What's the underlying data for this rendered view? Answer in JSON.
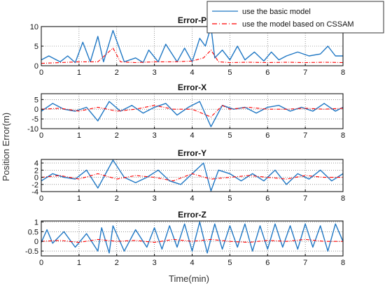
{
  "figure": {
    "xlabel": "Time(min)",
    "ylabel": "Position Error(m)",
    "legend": {
      "placement": "top-right",
      "entries": [
        {
          "label": "use the basic model",
          "color": "#1f77c4",
          "style": "solid"
        },
        {
          "label": "use the model based on CSSAM",
          "color": "#ff0000",
          "style": "dash-dot"
        }
      ]
    }
  },
  "chart_data": [
    {
      "type": "line",
      "title": "Error-P",
      "xlim": [
        0,
        8
      ],
      "ylim": [
        0,
        10
      ],
      "yticks": [
        "0",
        "5",
        "10"
      ],
      "xticks": [
        "0",
        "1",
        "2",
        "3",
        "4",
        "5",
        "6",
        "7",
        "8"
      ],
      "grid": true,
      "series": [
        {
          "name": "use the basic model",
          "x": [
            0,
            0.2,
            0.5,
            0.7,
            0.9,
            1.1,
            1.3,
            1.5,
            1.65,
            1.9,
            2.2,
            2.5,
            2.7,
            2.85,
            3.1,
            3.3,
            3.6,
            3.8,
            4.0,
            4.2,
            4.35,
            4.5,
            4.6,
            4.8,
            5.0,
            5.2,
            5.4,
            5.65,
            5.9,
            6.1,
            6.3,
            6.5,
            6.8,
            7.1,
            7.4,
            7.6,
            7.8,
            8.0
          ],
          "y": [
            1.5,
            2.5,
            1.0,
            2.5,
            0.8,
            6.0,
            1.0,
            7.5,
            1.0,
            9.0,
            1.0,
            2.0,
            0.8,
            4.0,
            1.0,
            5.5,
            1.0,
            4.5,
            1.0,
            7.0,
            5.0,
            10.0,
            2.0,
            4.0,
            1.5,
            5.0,
            1.5,
            3.5,
            1.2,
            3.5,
            1.5,
            2.5,
            3.5,
            2.5,
            3.0,
            5.0,
            2.5,
            2.5
          ]
        },
        {
          "name": "use the model based on CSSAM",
          "x": [
            0,
            0.5,
            1.0,
            1.5,
            1.9,
            2.1,
            2.5,
            3.0,
            3.5,
            4.0,
            4.3,
            4.5,
            4.7,
            5.0,
            5.5,
            6.0,
            6.5,
            7.0,
            7.5,
            8.0
          ],
          "y": [
            0.6,
            0.8,
            1.0,
            1.0,
            4.5,
            1.0,
            0.8,
            1.0,
            1.0,
            1.2,
            2.0,
            4.0,
            1.0,
            0.8,
            0.9,
            0.8,
            0.9,
            0.8,
            0.9,
            0.8
          ]
        }
      ]
    },
    {
      "type": "line",
      "title": "Error-X",
      "xlim": [
        0,
        8
      ],
      "ylim": [
        -10,
        8
      ],
      "yticks": [
        "-10",
        "-5",
        "0",
        "5"
      ],
      "xticks": [
        "0",
        "1",
        "2",
        "3",
        "4",
        "5",
        "6",
        "7",
        "8"
      ],
      "grid": true,
      "series": [
        {
          "name": "use the basic model",
          "x": [
            0,
            0.3,
            0.6,
            0.9,
            1.2,
            1.5,
            1.8,
            2.1,
            2.4,
            2.7,
            3.0,
            3.3,
            3.6,
            3.9,
            4.2,
            4.5,
            4.8,
            5.1,
            5.4,
            5.7,
            6.0,
            6.3,
            6.6,
            6.9,
            7.2,
            7.5,
            7.8,
            8.0
          ],
          "y": [
            -1,
            3,
            0,
            -1,
            1,
            -6,
            4,
            -1,
            2,
            -2,
            1,
            3,
            -3,
            1,
            4,
            -9,
            2,
            0,
            1,
            -2,
            1,
            2,
            -1,
            1,
            -1,
            3,
            -1,
            1
          ]
        },
        {
          "name": "use the model based on CSSAM",
          "x": [
            0,
            0.5,
            1.0,
            1.5,
            2.0,
            2.5,
            3.0,
            3.5,
            4.0,
            4.5,
            4.8,
            5.0,
            5.5,
            6.0,
            6.5,
            7.0,
            7.5,
            8.0
          ],
          "y": [
            0,
            0.5,
            -1,
            1,
            -1,
            0,
            2,
            0,
            0,
            -4,
            2,
            0,
            1,
            0,
            0,
            0.5,
            0,
            0.5
          ]
        }
      ]
    },
    {
      "type": "line",
      "title": "Error-Y",
      "xlim": [
        0,
        8
      ],
      "ylim": [
        -4,
        5
      ],
      "yticks": [
        "-4",
        "-2",
        "0",
        "2",
        "4"
      ],
      "xticks": [
        "0",
        "1",
        "2",
        "3",
        "4",
        "5",
        "6",
        "7",
        "8"
      ],
      "grid": true,
      "series": [
        {
          "name": "use the basic model",
          "x": [
            0,
            0.3,
            0.6,
            0.9,
            1.2,
            1.5,
            1.9,
            2.2,
            2.5,
            2.8,
            3.1,
            3.4,
            3.7,
            4.0,
            4.3,
            4.5,
            4.7,
            5.0,
            5.3,
            5.6,
            5.9,
            6.2,
            6.5,
            6.8,
            7.1,
            7.4,
            7.7,
            8.0
          ],
          "y": [
            -1,
            1,
            0,
            -0.5,
            2,
            -3,
            4.8,
            0,
            -1.5,
            0,
            2,
            -1,
            -2,
            1,
            4,
            -3.8,
            2,
            1,
            -1,
            1,
            -1,
            2,
            -2,
            1,
            -0.5,
            2,
            -1,
            1
          ]
        },
        {
          "name": "use the model based on CSSAM",
          "x": [
            0,
            0.5,
            1.0,
            1.5,
            2.0,
            2.5,
            3.0,
            3.5,
            4.0,
            4.5,
            5.0,
            5.5,
            6.0,
            6.5,
            7.0,
            7.5,
            8.0
          ],
          "y": [
            0,
            0.5,
            -0.5,
            1,
            -0.5,
            0.5,
            0,
            -1,
            1,
            -0.5,
            0,
            0.5,
            0,
            -0.5,
            0.5,
            0,
            0
          ]
        }
      ]
    },
    {
      "type": "line",
      "title": "Error-Z",
      "xlim": [
        0,
        8
      ],
      "ylim": [
        -0.75,
        1.05
      ],
      "yticks": [
        "-0.5",
        "0",
        "0.5",
        "1"
      ],
      "xticks": [
        "0",
        "1",
        "2",
        "3",
        "4",
        "5",
        "6",
        "7",
        "8"
      ],
      "grid": true,
      "series": [
        {
          "name": "use the basic model",
          "x": [
            0,
            0.15,
            0.3,
            0.6,
            0.9,
            1.2,
            1.5,
            1.6,
            1.8,
            1.9,
            2.2,
            2.5,
            2.8,
            3.0,
            3.2,
            3.4,
            3.6,
            3.8,
            4.0,
            4.2,
            4.4,
            4.6,
            4.8,
            5.0,
            5.2,
            5.4,
            5.6,
            5.8,
            6.0,
            6.2,
            6.4,
            6.6,
            6.8,
            7.0,
            7.2,
            7.4,
            7.6,
            7.8,
            8.0
          ],
          "y": [
            -0.05,
            0.6,
            -0.1,
            0.5,
            -0.3,
            0.4,
            -0.5,
            0.7,
            -0.6,
            0.8,
            -0.5,
            0.6,
            -0.3,
            0.7,
            -0.4,
            0.8,
            -0.3,
            0.9,
            -0.5,
            1.0,
            -0.6,
            0.9,
            -0.4,
            0.8,
            -0.3,
            0.9,
            -0.5,
            0.8,
            -0.4,
            0.9,
            -0.3,
            0.8,
            -0.4,
            0.9,
            -0.3,
            0.8,
            -0.5,
            0.9,
            0.0
          ]
        },
        {
          "name": "use the model based on CSSAM",
          "x": [
            0,
            0.5,
            1.0,
            1.5,
            2.0,
            2.5,
            3.0,
            3.5,
            4.0,
            4.5,
            5.0,
            5.5,
            6.0,
            6.5,
            7.0,
            7.5,
            8.0
          ],
          "y": [
            0,
            0.05,
            -0.05,
            0.1,
            0,
            0.05,
            -0.05,
            0.1,
            0,
            0.1,
            0,
            -0.05,
            0.05,
            0,
            0.1,
            0,
            0
          ]
        }
      ]
    }
  ]
}
